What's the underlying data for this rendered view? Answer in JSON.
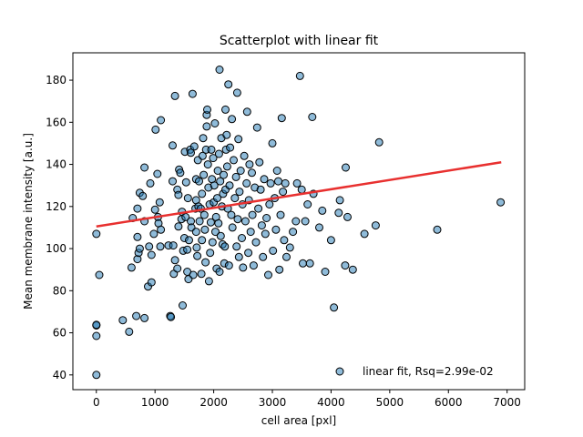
{
  "chart_data": {
    "type": "scatter",
    "title": "Scatterplot with linear fit",
    "xlabel": "cell area [pxl]",
    "ylabel": "Mean membrane intensity [a.u.]",
    "xlim": [
      -400,
      7300
    ],
    "ylim": [
      33,
      193
    ],
    "xticks": [
      0,
      1000,
      2000,
      3000,
      4000,
      5000,
      6000,
      7000
    ],
    "yticks": [
      40,
      60,
      80,
      100,
      120,
      140,
      160,
      180
    ],
    "grid": false,
    "legend": {
      "placement": "lower-right",
      "label": "linear fit, Rsq=2.99e-02"
    },
    "colors": {
      "points": "#1f77b4",
      "fit_line": "#e8302f"
    },
    "fit": {
      "x": [
        0,
        6900
      ],
      "y": [
        110.5,
        141
      ]
    },
    "points": [
      [
        0,
        40
      ],
      [
        0,
        58.5
      ],
      [
        0,
        63.5
      ],
      [
        0,
        63.8
      ],
      [
        0,
        107
      ],
      [
        50,
        87.5
      ],
      [
        450,
        66
      ],
      [
        560,
        60.5
      ],
      [
        600,
        91
      ],
      [
        620,
        114.5
      ],
      [
        680,
        68
      ],
      [
        700,
        95
      ],
      [
        720,
        98
      ],
      [
        740,
        100
      ],
      [
        700,
        105.5
      ],
      [
        700,
        119
      ],
      [
        740,
        126.5
      ],
      [
        790,
        125
      ],
      [
        820,
        138.5
      ],
      [
        820,
        113
      ],
      [
        820,
        67
      ],
      [
        880,
        82
      ],
      [
        900,
        101
      ],
      [
        920,
        131
      ],
      [
        940,
        97
      ],
      [
        940,
        84
      ],
      [
        980,
        107
      ],
      [
        1000,
        118.5
      ],
      [
        1010,
        156.5
      ],
      [
        1040,
        135.5
      ],
      [
        1050,
        115
      ],
      [
        1060,
        112
      ],
      [
        1080,
        122
      ],
      [
        1090,
        101
      ],
      [
        1100,
        109
      ],
      [
        1100,
        161
      ],
      [
        1230,
        101.5
      ],
      [
        1260,
        68
      ],
      [
        1270,
        67.5
      ],
      [
        1300,
        149
      ],
      [
        1300,
        132
      ],
      [
        1310,
        101.5
      ],
      [
        1320,
        88
      ],
      [
        1340,
        94.5
      ],
      [
        1340,
        172.5
      ],
      [
        1380,
        128
      ],
      [
        1380,
        90.5
      ],
      [
        1400,
        110.5
      ],
      [
        1400,
        125.5
      ],
      [
        1410,
        137.5
      ],
      [
        1430,
        136
      ],
      [
        1450,
        114
      ],
      [
        1460,
        117.5
      ],
      [
        1470,
        73
      ],
      [
        1480,
        99
      ],
      [
        1500,
        105
      ],
      [
        1510,
        146
      ],
      [
        1520,
        115
      ],
      [
        1530,
        131.5
      ],
      [
        1550,
        99.5
      ],
      [
        1550,
        89
      ],
      [
        1560,
        124
      ],
      [
        1570,
        85.5
      ],
      [
        1580,
        104
      ],
      [
        1600,
        147
      ],
      [
        1610,
        145.5
      ],
      [
        1610,
        113
      ],
      [
        1620,
        110
      ],
      [
        1640,
        173.5
      ],
      [
        1650,
        87.5
      ],
      [
        1670,
        148.5
      ],
      [
        1690,
        119
      ],
      [
        1700,
        133
      ],
      [
        1700,
        123
      ],
      [
        1700,
        108
      ],
      [
        1710,
        100.5
      ],
      [
        1720,
        96.5
      ],
      [
        1730,
        142
      ],
      [
        1740,
        120
      ],
      [
        1750,
        132
      ],
      [
        1760,
        113
      ],
      [
        1780,
        119
      ],
      [
        1790,
        88
      ],
      [
        1800,
        104
      ],
      [
        1800,
        126
      ],
      [
        1810,
        144
      ],
      [
        1820,
        152.5
      ],
      [
        1830,
        135
      ],
      [
        1840,
        116
      ],
      [
        1850,
        109
      ],
      [
        1860,
        93.5
      ],
      [
        1870,
        147
      ],
      [
        1880,
        163.5
      ],
      [
        1880,
        158
      ],
      [
        1890,
        166
      ],
      [
        1900,
        140
      ],
      [
        1910,
        129
      ],
      [
        1920,
        84.5
      ],
      [
        1930,
        121
      ],
      [
        1940,
        98
      ],
      [
        1950,
        112.5
      ],
      [
        1960,
        147
      ],
      [
        1970,
        133
      ],
      [
        1980,
        103
      ],
      [
        1990,
        143
      ],
      [
        2000,
        122
      ],
      [
        2010,
        130
      ],
      [
        2020,
        159.5
      ],
      [
        2030,
        108
      ],
      [
        2040,
        115
      ],
      [
        2050,
        90.5
      ],
      [
        2060,
        124
      ],
      [
        2070,
        137
      ],
      [
        2080,
        112
      ],
      [
        2090,
        145
      ],
      [
        2100,
        89
      ],
      [
        2100,
        185
      ],
      [
        2110,
        132
      ],
      [
        2120,
        106
      ],
      [
        2130,
        152.5
      ],
      [
        2140,
        120
      ],
      [
        2150,
        102
      ],
      [
        2160,
        126
      ],
      [
        2170,
        135
      ],
      [
        2180,
        93
      ],
      [
        2190,
        101
      ],
      [
        2200,
        166
      ],
      [
        2200,
        128
      ],
      [
        2210,
        147
      ],
      [
        2220,
        154
      ],
      [
        2230,
        139
      ],
      [
        2240,
        119
      ],
      [
        2250,
        178
      ],
      [
        2260,
        92
      ],
      [
        2270,
        130
      ],
      [
        2280,
        148
      ],
      [
        2300,
        116
      ],
      [
        2310,
        161.5
      ],
      [
        2320,
        110
      ],
      [
        2340,
        142
      ],
      [
        2360,
        124
      ],
      [
        2380,
        134
      ],
      [
        2390,
        101
      ],
      [
        2400,
        174
      ],
      [
        2410,
        114
      ],
      [
        2420,
        152
      ],
      [
        2430,
        96
      ],
      [
        2440,
        127
      ],
      [
        2460,
        137
      ],
      [
        2480,
        105
      ],
      [
        2490,
        121
      ],
      [
        2500,
        91
      ],
      [
        2520,
        144
      ],
      [
        2540,
        113
      ],
      [
        2560,
        131
      ],
      [
        2570,
        165
      ],
      [
        2590,
        98
      ],
      [
        2600,
        123
      ],
      [
        2610,
        140
      ],
      [
        2630,
        108
      ],
      [
        2650,
        136
      ],
      [
        2660,
        116
      ],
      [
        2680,
        92
      ],
      [
        2700,
        129
      ],
      [
        2720,
        103
      ],
      [
        2740,
        157.5
      ],
      [
        2760,
        119
      ],
      [
        2780,
        141
      ],
      [
        2800,
        128
      ],
      [
        2820,
        111
      ],
      [
        2840,
        96
      ],
      [
        2860,
        133
      ],
      [
        2880,
        107
      ],
      [
        2900,
        114.5
      ],
      [
        2930,
        87.5
      ],
      [
        2950,
        121
      ],
      [
        2970,
        131
      ],
      [
        3000,
        150
      ],
      [
        3010,
        99
      ],
      [
        3040,
        124
      ],
      [
        3060,
        109
      ],
      [
        3080,
        137
      ],
      [
        3100,
        132
      ],
      [
        3120,
        90
      ],
      [
        3140,
        116
      ],
      [
        3160,
        162
      ],
      [
        3180,
        127
      ],
      [
        3200,
        104
      ],
      [
        3220,
        131
      ],
      [
        3240,
        96
      ],
      [
        3300,
        100.5
      ],
      [
        3350,
        108
      ],
      [
        3400,
        113
      ],
      [
        3420,
        131
      ],
      [
        3470,
        182
      ],
      [
        3500,
        128
      ],
      [
        3520,
        93
      ],
      [
        3560,
        113
      ],
      [
        3600,
        121
      ],
      [
        3640,
        93
      ],
      [
        3680,
        162.5
      ],
      [
        3700,
        126
      ],
      [
        3800,
        110
      ],
      [
        3850,
        118
      ],
      [
        3900,
        89
      ],
      [
        4000,
        104
      ],
      [
        4050,
        72
      ],
      [
        4130,
        117
      ],
      [
        4150,
        123
      ],
      [
        4240,
        92
      ],
      [
        4250,
        138.5
      ],
      [
        4280,
        115
      ],
      [
        4370,
        90
      ],
      [
        4570,
        107
      ],
      [
        4760,
        111
      ],
      [
        4820,
        150.5
      ],
      [
        5810,
        109
      ],
      [
        6890,
        122
      ]
    ]
  }
}
